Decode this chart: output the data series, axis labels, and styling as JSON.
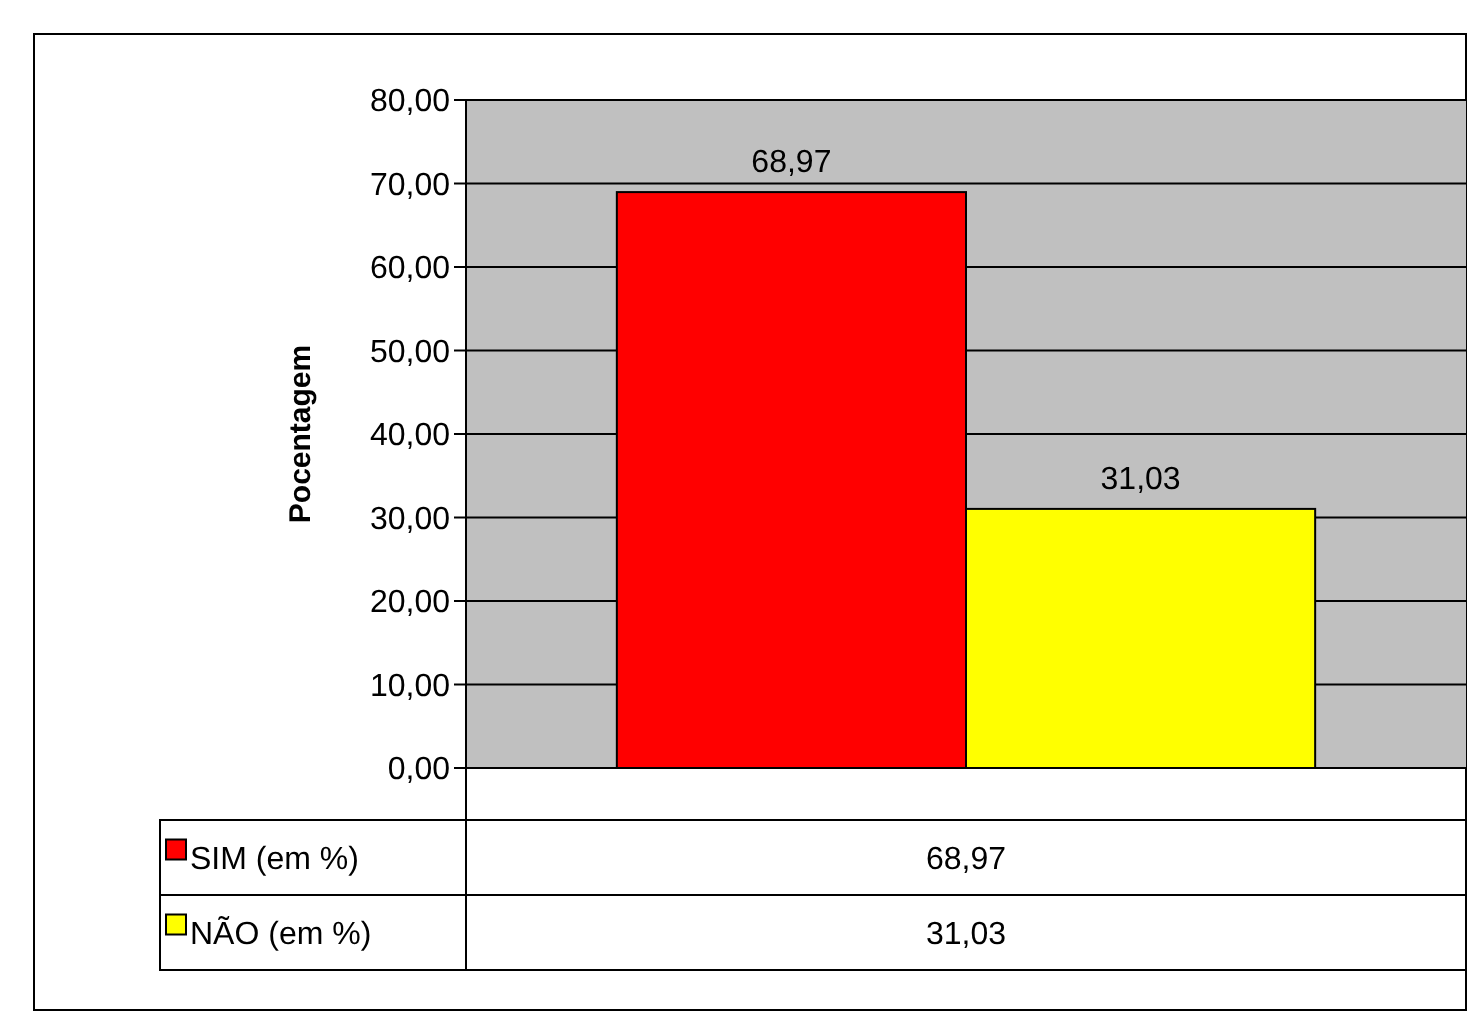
{
  "chart_data": {
    "type": "bar",
    "ylabel": "Pocentagem",
    "categories": [
      null
    ],
    "series": [
      {
        "name": "SIM (em %)",
        "color": "#ff0000",
        "values": [
          68.97
        ],
        "value_labels": [
          "68,97"
        ]
      },
      {
        "name": "NÃO (em %)",
        "color": "#ffff00",
        "values": [
          31.03
        ],
        "value_labels": [
          "31,03"
        ]
      }
    ],
    "ylim": [
      0,
      80
    ],
    "yticks": [
      {
        "value": 0,
        "label": "0,00"
      },
      {
        "value": 10,
        "label": "10,00"
      },
      {
        "value": 20,
        "label": "20,00"
      },
      {
        "value": 30,
        "label": "30,00"
      },
      {
        "value": 40,
        "label": "40,00"
      },
      {
        "value": 50,
        "label": "50,00"
      },
      {
        "value": 60,
        "label": "60,00"
      },
      {
        "value": 70,
        "label": "70,00"
      },
      {
        "value": 80,
        "label": "80,00"
      }
    ],
    "grid": "y",
    "legend": "bottom"
  }
}
